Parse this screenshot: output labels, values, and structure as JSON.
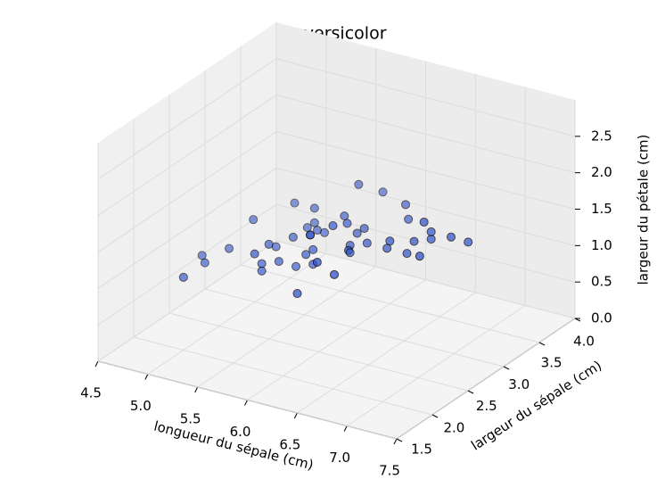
{
  "chart_data": {
    "type": "scatter3d",
    "title": "iris versicolor",
    "xlabel": "longueur du sépale (cm)",
    "ylabel": "largeur du sépale (cm)",
    "zlabel": "largeur du pétale (cm)",
    "color": "#3355cc",
    "grid": true,
    "x": [
      7.0,
      6.4,
      6.9,
      5.5,
      6.5,
      5.7,
      6.3,
      4.9,
      6.6,
      5.2,
      5.0,
      5.9,
      6.0,
      6.1,
      5.6,
      6.7,
      5.6,
      5.8,
      6.2,
      5.6,
      5.9,
      6.1,
      6.3,
      6.1,
      6.4,
      6.6,
      6.8,
      6.7,
      6.0,
      5.7,
      5.5,
      5.5,
      5.8,
      6.0,
      5.4,
      6.0,
      6.7,
      6.3,
      5.6,
      5.5,
      5.5,
      6.1,
      5.8,
      5.0,
      5.6,
      5.7,
      5.7,
      6.2,
      5.1,
      5.7
    ],
    "y": [
      3.2,
      3.2,
      3.1,
      2.3,
      2.8,
      2.8,
      3.3,
      2.4,
      2.9,
      2.7,
      2.0,
      3.0,
      2.2,
      2.9,
      2.9,
      3.1,
      3.0,
      2.7,
      2.2,
      2.5,
      3.2,
      2.8,
      2.5,
      2.8,
      2.9,
      3.0,
      2.8,
      3.0,
      2.9,
      2.6,
      2.4,
      2.4,
      2.7,
      2.7,
      3.0,
      3.4,
      3.1,
      2.3,
      3.0,
      2.5,
      2.6,
      3.0,
      2.6,
      2.3,
      2.7,
      3.0,
      2.9,
      2.9,
      2.5,
      2.8
    ],
    "z": [
      1.4,
      1.5,
      1.5,
      1.3,
      1.5,
      1.3,
      1.6,
      1.0,
      1.3,
      1.4,
      1.0,
      1.5,
      1.0,
      1.4,
      1.3,
      1.4,
      1.5,
      1.0,
      1.5,
      1.1,
      1.8,
      1.3,
      1.5,
      1.2,
      1.3,
      1.4,
      1.4,
      1.7,
      1.5,
      1.0,
      1.1,
      1.0,
      1.2,
      1.6,
      1.5,
      1.6,
      1.5,
      1.3,
      1.3,
      1.3,
      1.2,
      1.4,
      1.2,
      1.0,
      1.3,
      1.2,
      1.3,
      1.3,
      1.1,
      1.3
    ],
    "xlim": [
      4.5,
      7.5
    ],
    "ylim": [
      1.5,
      4.0
    ],
    "zlim": [
      0,
      3.0
    ],
    "xticks": [
      4.5,
      {
        "value": 5,
        "label": "5.0"
      },
      5.5,
      {
        "value": 6,
        "label": "6.0"
      },
      6.5,
      {
        "value": 7,
        "label": "7.0"
      },
      7.5
    ],
    "yticks": [
      1.5,
      {
        "value": 2,
        "label": "2.0"
      },
      2.5,
      {
        "value": 3,
        "label": "3.0"
      },
      3.5,
      {
        "value": 4,
        "label": "4.0"
      }
    ],
    "zticks": [
      {
        "value": 0,
        "label": "0.0"
      },
      0.5,
      {
        "value": 1,
        "label": "1.0"
      },
      1.5,
      {
        "value": 2,
        "label": "2.0"
      },
      2.5
    ]
  }
}
